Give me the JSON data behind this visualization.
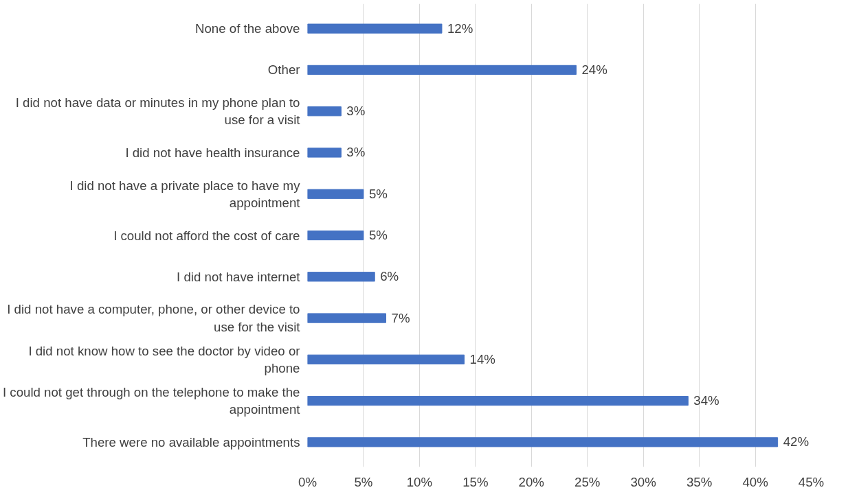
{
  "chart_data": {
    "type": "bar",
    "orientation": "horizontal",
    "categories": [
      "None of the above",
      "Other",
      "I did not have data or minutes in my phone plan to use for a visit",
      "I did not have health insurance",
      "I did not have a private place to have my appointment",
      "I could not afford the cost of care",
      "I did not have internet",
      "I did not have a computer, phone, or other device to use for the visit",
      "I did not know how to see the doctor by video or phone",
      "I could not get through on the telephone to make the appointment",
      "There were no available appointments"
    ],
    "values": [
      12,
      24,
      3,
      3,
      5,
      5,
      6,
      7,
      14,
      34,
      42
    ],
    "value_labels": [
      "12%",
      "24%",
      "3%",
      "3%",
      "5%",
      "5%",
      "6%",
      "7%",
      "14%",
      "34%",
      "42%"
    ],
    "color": "#4472c4",
    "xlim": [
      0,
      45
    ],
    "xticks": [
      {
        "value": 0,
        "label": "0%"
      },
      {
        "value": 5,
        "label": "5%"
      },
      {
        "value": 10,
        "label": "10%"
      },
      {
        "value": 15,
        "label": "15%"
      },
      {
        "value": 20,
        "label": "20%"
      },
      {
        "value": 25,
        "label": "25%"
      },
      {
        "value": 30,
        "label": "30%"
      },
      {
        "value": 35,
        "label": "35%"
      },
      {
        "value": 40,
        "label": "40%"
      },
      {
        "value": 45,
        "label": "45%"
      }
    ],
    "grid": "x"
  }
}
